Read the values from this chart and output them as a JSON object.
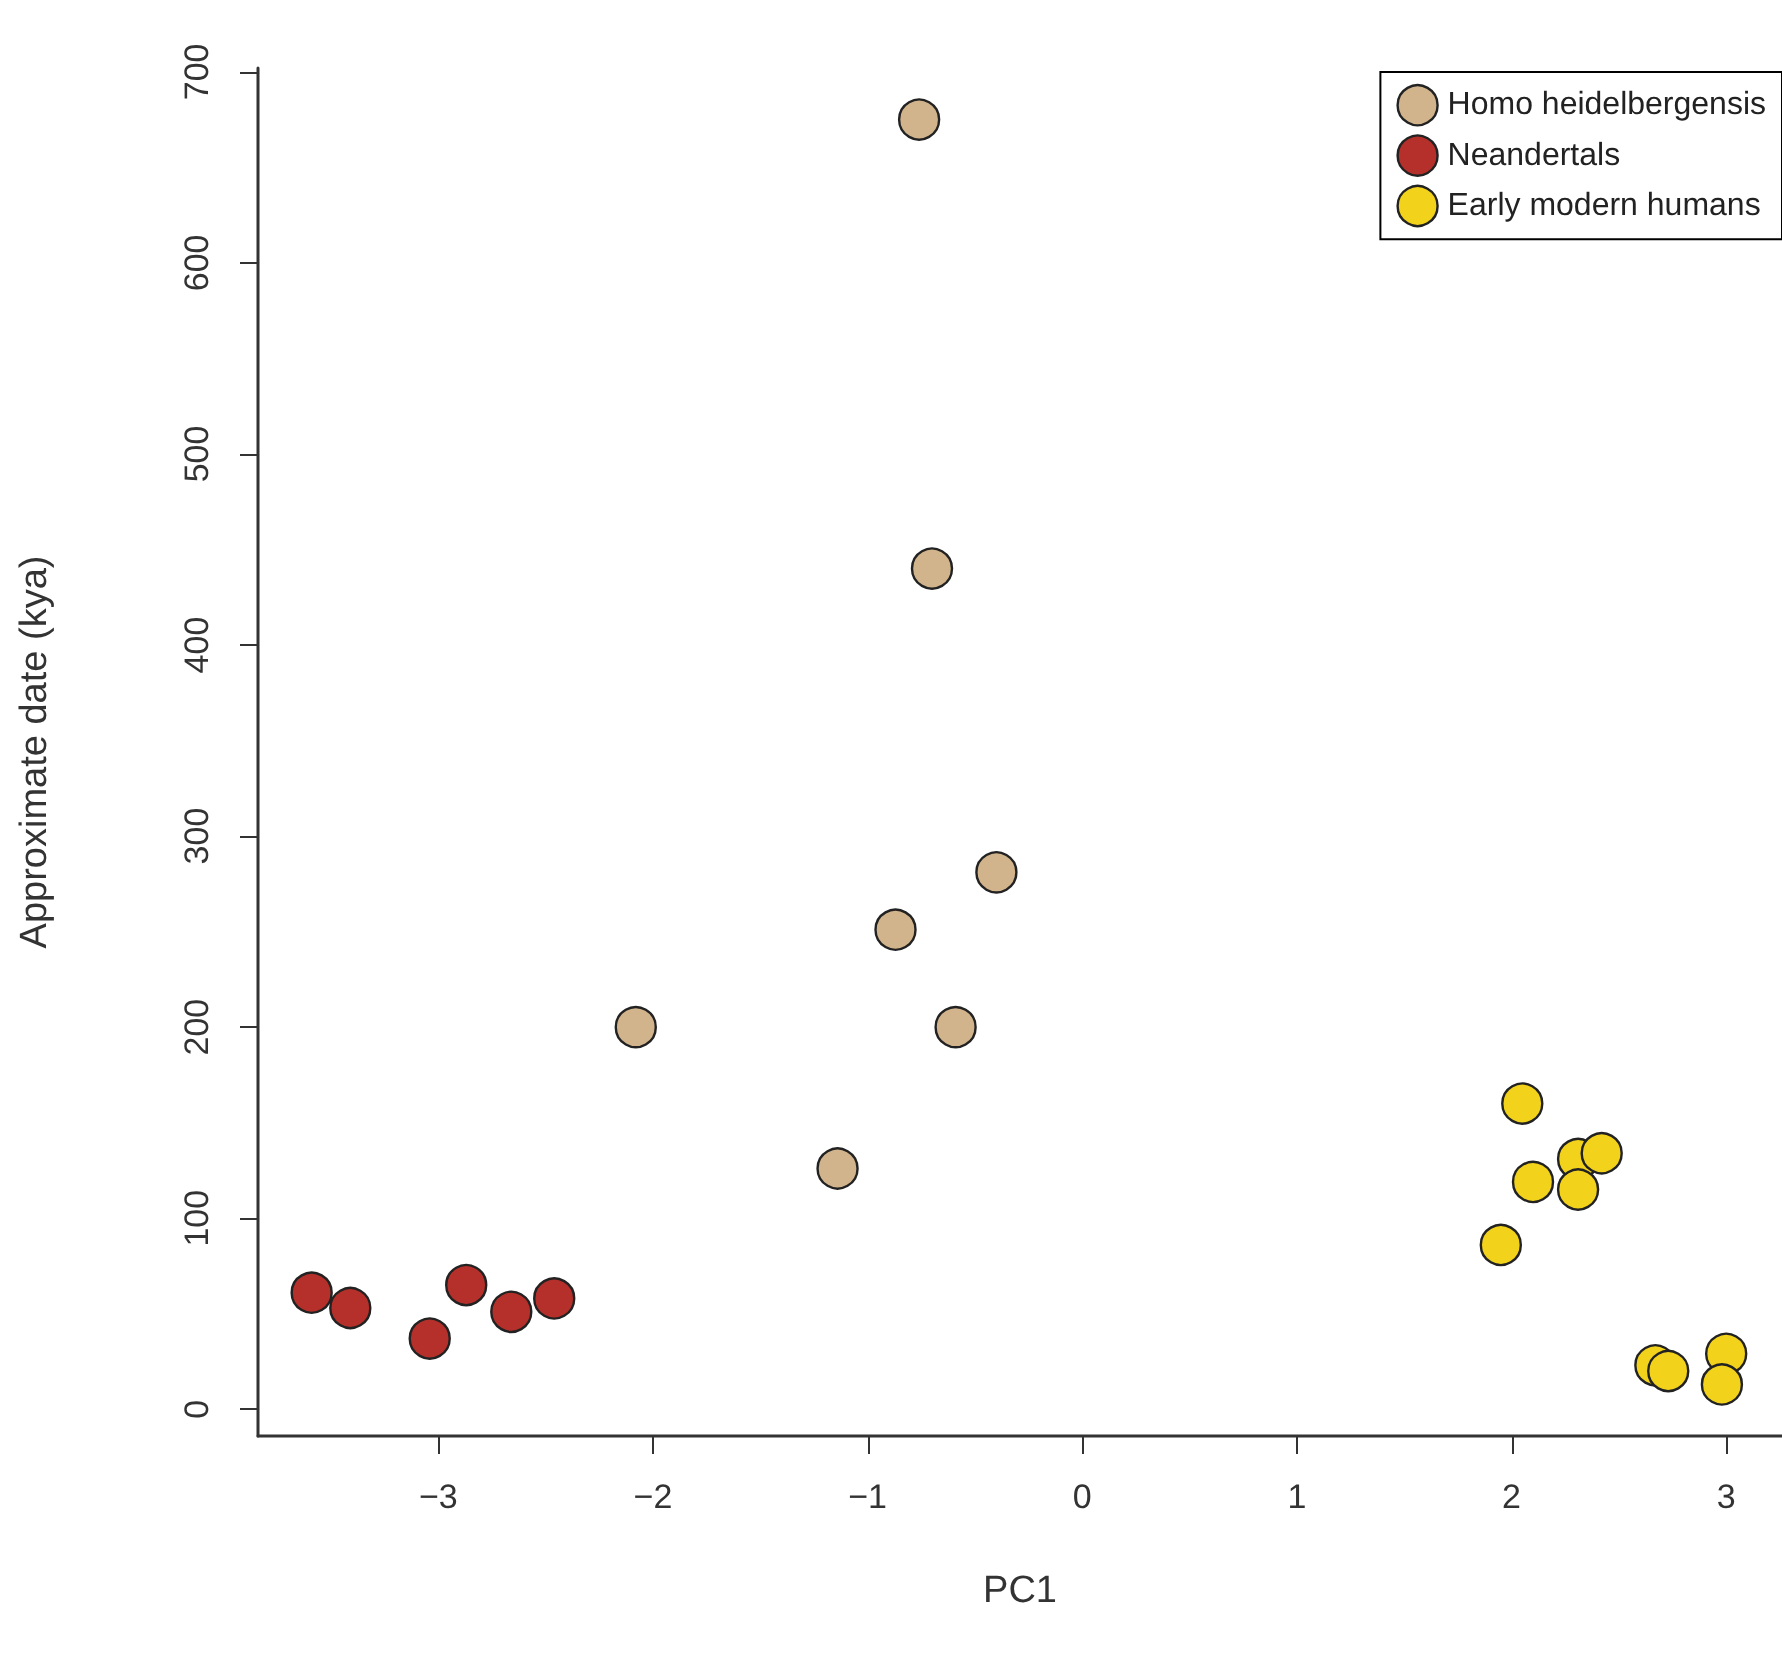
{
  "chart_data": {
    "type": "scatter",
    "xlabel": "PC1",
    "ylabel": "Approximate date (kya)",
    "xlim": [
      -3.84,
      3.26
    ],
    "xticks": [
      -3,
      -2,
      -1,
      0,
      1,
      2,
      3
    ],
    "ylim": [
      -14,
      702
    ],
    "yticks": [
      0,
      100,
      200,
      300,
      400,
      500,
      600,
      700
    ],
    "grid": false,
    "legend": "top right",
    "marker": "circle",
    "series": [
      {
        "name": "Homo heidelbergensis",
        "color": "#d2b48c",
        "x": [
          -2.08,
          -0.59,
          -1.14,
          -0.76,
          -0.7,
          -0.87,
          -0.4
        ],
        "values": [
          200,
          200,
          126,
          675,
          440,
          251,
          281
        ]
      },
      {
        "name": "Neandertals",
        "color": "#b5302a",
        "x": [
          -3.59,
          -3.41,
          -3.04,
          -2.87,
          -2.66,
          -2.46
        ],
        "values": [
          61,
          53,
          37,
          65,
          51,
          58
        ]
      },
      {
        "name": "Early modern humans",
        "color": "#f2d21b",
        "x": [
          2.05,
          2.1,
          2.31,
          2.42,
          2.31,
          1.95,
          2.67,
          2.73,
          3.0,
          2.98
        ],
        "values": [
          160,
          119,
          131,
          134,
          115,
          86,
          23,
          20,
          29,
          13
        ]
      }
    ]
  }
}
